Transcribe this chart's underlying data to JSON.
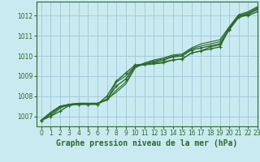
{
  "title": "Graphe pression niveau de la mer (hPa)",
  "background_color": "#c8eaf0",
  "grid_color": "#a0c8d8",
  "line_color": "#2d6a2d",
  "xlim": [
    -0.5,
    23
  ],
  "ylim": [
    1006.5,
    1012.7
  ],
  "xticks": [
    0,
    1,
    2,
    3,
    4,
    5,
    6,
    7,
    8,
    9,
    10,
    11,
    12,
    13,
    14,
    15,
    16,
    17,
    18,
    19,
    20,
    21,
    22,
    23
  ],
  "yticks": [
    1007,
    1008,
    1009,
    1010,
    1011,
    1012
  ],
  "lines": [
    {
      "x": [
        0,
        1,
        2,
        3,
        4,
        5,
        6,
        7,
        8,
        9,
        10,
        11,
        12,
        13,
        14,
        15,
        16,
        17,
        18,
        19,
        20,
        21,
        22,
        23
      ],
      "y": [
        1006.8,
        1007.0,
        1007.25,
        1007.55,
        1007.6,
        1007.6,
        1007.6,
        1008.0,
        1008.75,
        1009.15,
        1009.55,
        1009.6,
        1009.65,
        1009.7,
        1009.8,
        1009.85,
        1010.15,
        1010.25,
        1010.35,
        1010.45,
        1011.35,
        1012.0,
        1012.0,
        1012.2
      ],
      "marker": true,
      "lw": 1.0
    },
    {
      "x": [
        0,
        1,
        2,
        3,
        4,
        5,
        6,
        7,
        8,
        9,
        10,
        11,
        12,
        13,
        14,
        15,
        16,
        17,
        18,
        19,
        20,
        21,
        22,
        23
      ],
      "y": [
        1006.8,
        1007.0,
        1007.4,
        1007.6,
        1007.6,
        1007.6,
        1007.65,
        1007.8,
        1008.7,
        1009.0,
        1009.5,
        1009.55,
        1009.6,
        1009.65,
        1009.8,
        1009.85,
        1010.15,
        1010.25,
        1010.45,
        1010.55,
        1011.3,
        1011.9,
        1012.05,
        1012.3
      ],
      "marker": false,
      "lw": 0.8
    },
    {
      "x": [
        0,
        1,
        2,
        3,
        4,
        5,
        6,
        7,
        8,
        9,
        10,
        11,
        12,
        13,
        14,
        15,
        16,
        17,
        18,
        19,
        20,
        21,
        22,
        23
      ],
      "y": [
        1006.8,
        1007.1,
        1007.45,
        1007.55,
        1007.6,
        1007.6,
        1007.6,
        1007.85,
        1008.5,
        1008.85,
        1009.5,
        1009.6,
        1009.7,
        1009.8,
        1009.95,
        1010.0,
        1010.3,
        1010.4,
        1010.5,
        1010.6,
        1011.3,
        1011.95,
        1012.1,
        1012.35
      ],
      "marker": true,
      "lw": 1.0
    },
    {
      "x": [
        0,
        1,
        2,
        3,
        4,
        5,
        6,
        7,
        8,
        9,
        10,
        11,
        12,
        13,
        14,
        15,
        16,
        17,
        18,
        19,
        20,
        21,
        22,
        23
      ],
      "y": [
        1006.8,
        1007.15,
        1007.5,
        1007.6,
        1007.65,
        1007.65,
        1007.65,
        1007.8,
        1008.3,
        1008.7,
        1009.45,
        1009.65,
        1009.75,
        1009.85,
        1010.0,
        1010.05,
        1010.35,
        1010.5,
        1010.6,
        1010.7,
        1011.4,
        1012.0,
        1012.15,
        1012.4
      ],
      "marker": false,
      "lw": 0.8
    },
    {
      "x": [
        0,
        1,
        2,
        3,
        4,
        5,
        6,
        7,
        8,
        9,
        10,
        11,
        12,
        13,
        14,
        15,
        16,
        17,
        18,
        19,
        20,
        21,
        22,
        23
      ],
      "y": [
        1006.8,
        1007.2,
        1007.5,
        1007.6,
        1007.65,
        1007.65,
        1007.65,
        1007.85,
        1008.2,
        1008.6,
        1009.4,
        1009.65,
        1009.8,
        1009.9,
        1010.05,
        1010.1,
        1010.4,
        1010.6,
        1010.7,
        1010.8,
        1011.45,
        1012.05,
        1012.2,
        1012.45
      ],
      "marker": false,
      "lw": 0.8
    }
  ],
  "fontsize_title": 7.0,
  "tick_fontsize": 5.5
}
